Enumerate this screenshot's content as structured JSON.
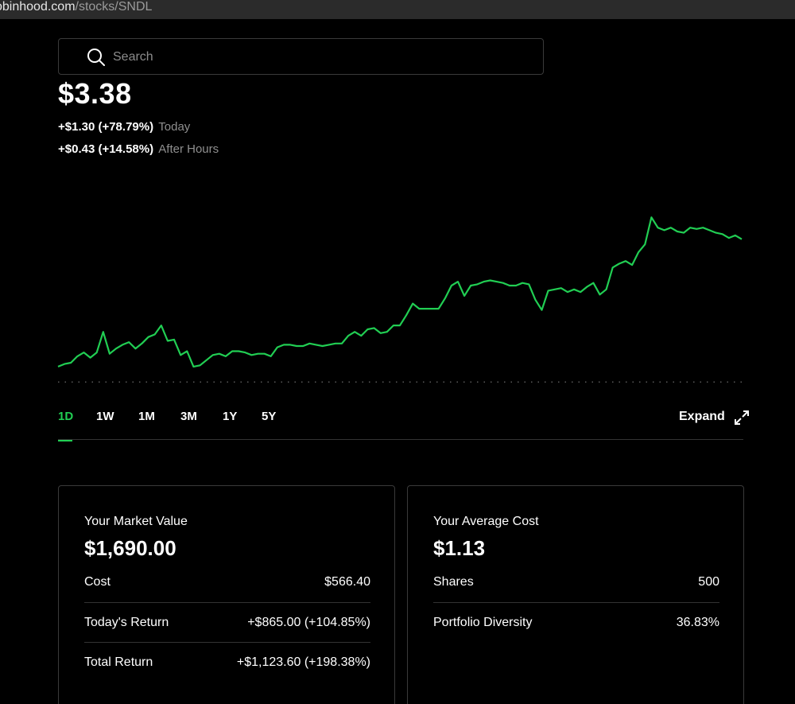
{
  "browser": {
    "url_host": "obinhood.com",
    "url_path": "/stocks/SNDL"
  },
  "search": {
    "placeholder": "Search"
  },
  "quote": {
    "price": "$3.38",
    "today_change": "+$1.30 (+78.79%)",
    "today_label": "Today",
    "after_change": "+$0.43 (+14.58%)",
    "after_label": "After Hours"
  },
  "colors": {
    "accent_green": "#21ce53",
    "background": "#000000",
    "muted_text": "#8f8f8f"
  },
  "chart_data": {
    "type": "line",
    "title": "",
    "xlabel": "",
    "ylabel": "",
    "ylim": [
      1.9,
      3.6
    ],
    "grid": false,
    "baseline_previous_close": 1.96,
    "series": [
      {
        "values": [
          2.08,
          2.1,
          2.11,
          2.16,
          2.19,
          2.15,
          2.19,
          2.35,
          2.18,
          2.22,
          2.25,
          2.27,
          2.22,
          2.26,
          2.31,
          2.33,
          2.4,
          2.28,
          2.29,
          2.17,
          2.2,
          2.08,
          2.09,
          2.13,
          2.17,
          2.18,
          2.16,
          2.2,
          2.2,
          2.19,
          2.17,
          2.18,
          2.18,
          2.16,
          2.23,
          2.25,
          2.25,
          2.24,
          2.24,
          2.26,
          2.25,
          2.24,
          2.25,
          2.26,
          2.26,
          2.32,
          2.35,
          2.32,
          2.37,
          2.38,
          2.34,
          2.35,
          2.4,
          2.4,
          2.48,
          2.57,
          2.53,
          2.53,
          2.53,
          2.53,
          2.61,
          2.71,
          2.74,
          2.63,
          2.71,
          2.72,
          2.74,
          2.75,
          2.74,
          2.73,
          2.71,
          2.71,
          2.73,
          2.72,
          2.6,
          2.52,
          2.67,
          2.68,
          2.69,
          2.66,
          2.68,
          2.66,
          2.7,
          2.73,
          2.64,
          2.68,
          2.85,
          2.88,
          2.9,
          2.87,
          2.97,
          3.03,
          3.24,
          3.16,
          3.14,
          3.16,
          3.13,
          3.12,
          3.16,
          3.15,
          3.16,
          3.14,
          3.12,
          3.11,
          3.08,
          3.1,
          3.07
        ]
      }
    ]
  },
  "ranges": {
    "items": [
      "1D",
      "1W",
      "1M",
      "3M",
      "1Y",
      "5Y"
    ],
    "active": "1D",
    "expand_label": "Expand"
  },
  "market_card": {
    "title": "Your Market Value",
    "value": "$1,690.00",
    "rows": [
      {
        "label": "Cost",
        "value": "$566.40"
      },
      {
        "label": "Today's Return",
        "value": "+$865.00 (+104.85%)"
      },
      {
        "label": "Total Return",
        "value": "+$1,123.60 (+198.38%)"
      }
    ]
  },
  "average_card": {
    "title": "Your Average Cost",
    "value": "$1.13",
    "rows": [
      {
        "label": "Shares",
        "value": "500"
      },
      {
        "label": "Portfolio Diversity",
        "value": "36.83%"
      }
    ]
  }
}
